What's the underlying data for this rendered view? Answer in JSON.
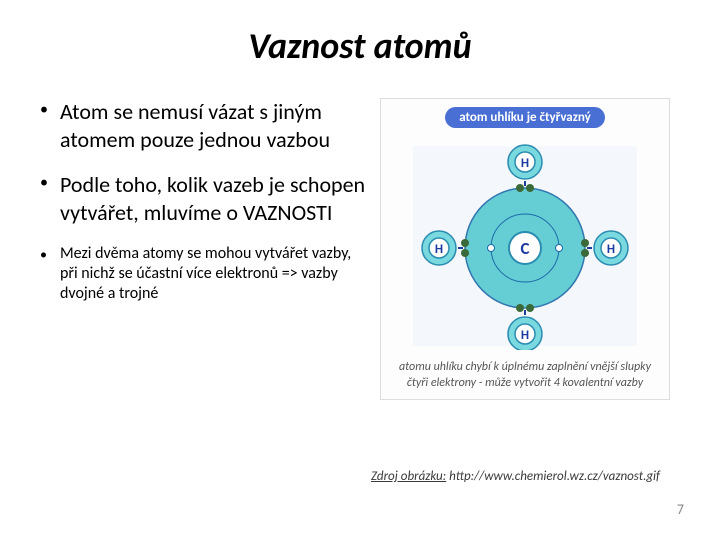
{
  "title": {
    "text": "Vaznost atomů",
    "fontsize": 36
  },
  "bullets": {
    "main": [
      "Atom se nemusí vázat s jiným atomem pouze jednou vazbou",
      "Podle toho, kolik vazeb je schopen vytvářet, mluvíme o VAZNOSTI"
    ],
    "sub": [
      "Mezi dvěma atomy se mohou vytvářet vazby, při nichž se účastní více elektronů => vazby dvojné a trojné"
    ],
    "main_fontsize": 22,
    "sub_fontsize": 16
  },
  "diagram": {
    "label": "atom uhlíku je čtyřvazný",
    "label_bg": "#4a6fd4",
    "label_color": "#ffffff",
    "label_fontsize": 13,
    "caption": "atomu uhlíku chybí k úplnému zaplnění vnější slupky čtyři elektrony - může vytvořit 4 kovalentní vazby",
    "caption_fontsize": 12,
    "center": {
      "label": "C",
      "fill": "#56c9d0",
      "stroke": "#2a8cb0",
      "text_color": "#1d3aa0"
    },
    "hydrogen": {
      "label": "H",
      "fill": "#7ad8df",
      "stroke": "#2a8cb0",
      "text_color": "#1d3aa0"
    },
    "shell_stroke": "#1d6aa8",
    "electron_fill": "#3a6a3a",
    "arrow_color": "#1b3f9e",
    "bg": "#f4f7fb"
  },
  "source": {
    "label": "Zdroj obrázku:",
    "url": "http://www.chemierol.wz.cz/vaznost.gif",
    "fontsize": 13,
    "color": "#3a3a3a"
  },
  "page": {
    "number": "7",
    "fontsize": 14
  }
}
